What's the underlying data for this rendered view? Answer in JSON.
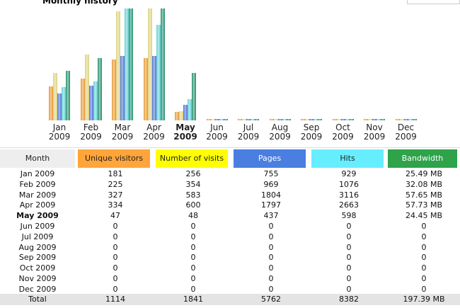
{
  "header": {
    "title": "Monthly history"
  },
  "chart_data": {
    "type": "bar",
    "current_index": 4,
    "categories": [
      "Jan 2009",
      "Feb 2009",
      "Mar 2009",
      "Apr 2009",
      "May 2009",
      "Jun 2009",
      "Jul 2009",
      "Aug 2009",
      "Sep 2009",
      "Oct 2009",
      "Nov 2009",
      "Dec 2009"
    ],
    "series": [
      {
        "name": "Unique visitors",
        "color": "#e8962e",
        "header_color": "#ffa53a",
        "values": [
          181,
          225,
          327,
          334,
          47,
          0,
          0,
          0,
          0,
          0,
          0,
          0
        ]
      },
      {
        "name": "Number of visits",
        "color": "#dcd17c",
        "header_color": "#ffff00",
        "values": [
          256,
          354,
          583,
          600,
          48,
          0,
          0,
          0,
          0,
          0,
          0,
          0
        ]
      },
      {
        "name": "Pages",
        "color": "#4a6fd6",
        "header_color": "#4a7ee0",
        "values": [
          755,
          969,
          1804,
          1797,
          437,
          0,
          0,
          0,
          0,
          0,
          0,
          0
        ]
      },
      {
        "name": "Hits",
        "color": "#5ccfd6",
        "header_color": "#66eeff",
        "values": [
          929,
          1076,
          3116,
          2663,
          598,
          0,
          0,
          0,
          0,
          0,
          0,
          0
        ]
      },
      {
        "name": "Bandwidth",
        "color": "#1f8f6a",
        "header_color": "#2ea34a",
        "values": [
          25.49,
          32.08,
          57.65,
          57.73,
          24.45,
          0,
          0,
          0,
          0,
          0,
          0,
          0
        ],
        "value_labels": [
          "25.49 MB",
          "32.08 MB",
          "57.65 MB",
          "57.73 MB",
          "24.45 MB",
          "0",
          "0",
          "0",
          "0",
          "0",
          "0",
          "0"
        ]
      }
    ]
  },
  "table": {
    "month_header": "Month",
    "total": [
      "Total",
      1114,
      1841,
      5762,
      8382,
      "197.39 MB"
    ]
  }
}
